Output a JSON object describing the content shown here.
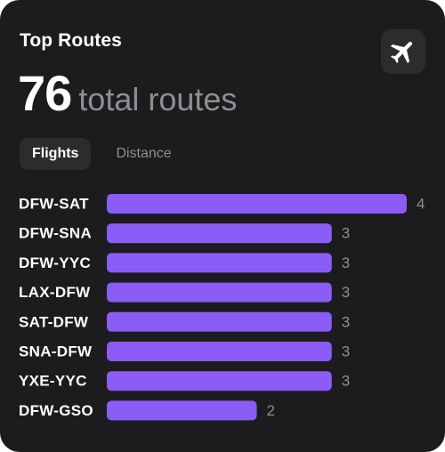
{
  "widget": {
    "title": "Top Routes",
    "count": "76",
    "count_suffix": "total routes",
    "icon": "airplane-icon"
  },
  "tabs": [
    {
      "label": "Flights",
      "active": true
    },
    {
      "label": "Distance",
      "active": false
    }
  ],
  "colors": {
    "background": "#1c1c1e",
    "bar": "#8b5cf6",
    "muted_text": "#8e8e93"
  },
  "chart_data": {
    "type": "bar",
    "orientation": "horizontal",
    "categories": [
      "DFW-SAT",
      "DFW-SNA",
      "DFW-YYC",
      "LAX-DFW",
      "SAT-DFW",
      "SNA-DFW",
      "YXE-YYC",
      "DFW-GSO"
    ],
    "values": [
      4,
      3,
      3,
      3,
      3,
      3,
      3,
      2
    ],
    "xlim": [
      0,
      4
    ],
    "grid": false,
    "data_labels": true
  }
}
